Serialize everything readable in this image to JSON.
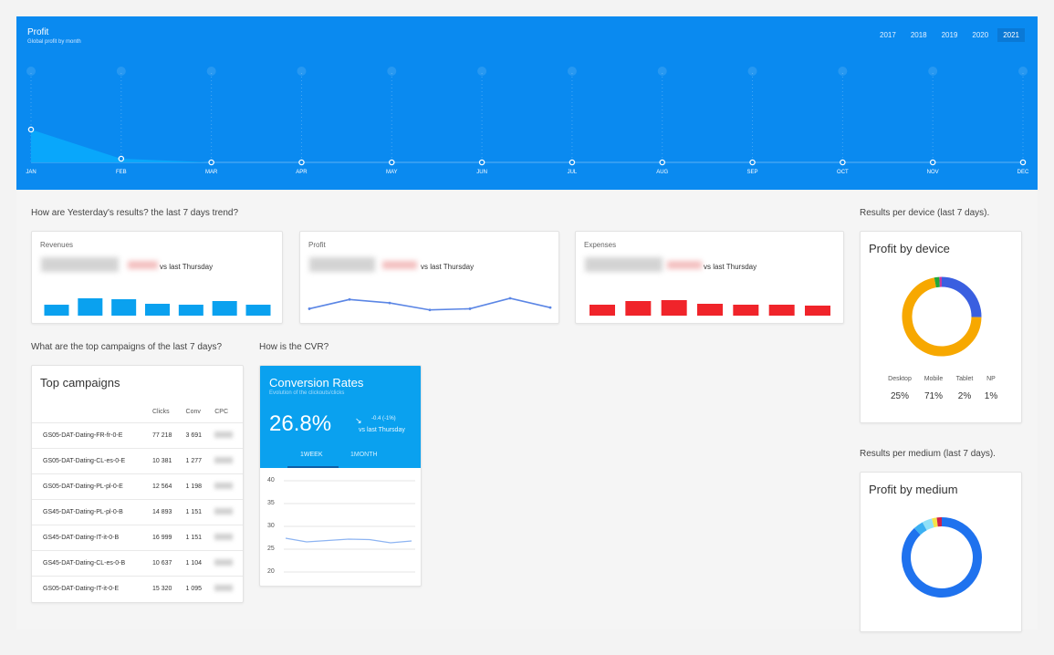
{
  "header": {
    "title": "Profit",
    "subtitle": "Global profit by month",
    "years": [
      "2017",
      "2018",
      "2019",
      "2020",
      "2021"
    ],
    "active_year": "2021",
    "months": [
      "JAN",
      "FEB",
      "MAR",
      "APR",
      "MAY",
      "JUN",
      "JUL",
      "AUG",
      "SEP",
      "OCT",
      "NOV",
      "DEC"
    ]
  },
  "sections": {
    "yesterday": "How are Yesterday's results? the last 7 days trend?",
    "device": "Results per device (last 7 days).",
    "campaigns": "What are the top campaigns of the last 7 days?",
    "cvr": "How is the CVR?",
    "medium": "Results per medium (last 7 days)."
  },
  "kpis": [
    {
      "label": "Revenues",
      "vs": "vs last Thursday",
      "color": "#0aa1ef"
    },
    {
      "label": "Profit",
      "vs": "vs last Thursday",
      "color": "#5b86e5"
    },
    {
      "label": "Expenses",
      "vs": "vs last Thursday",
      "color": "#f0242a"
    }
  ],
  "campaigns": {
    "title": "Top campaigns",
    "columns": [
      "",
      "Clicks",
      "Conv",
      "CPC"
    ],
    "rows": [
      {
        "name": "GS05-DAT-Dating-FR-fr-0-E",
        "clicks": "77 218",
        "conv": "3 691"
      },
      {
        "name": "GS05-DAT-Dating-CL-es-0-E",
        "clicks": "10 381",
        "conv": "1 277"
      },
      {
        "name": "GS05-DAT-Dating-PL-pl-0-E",
        "clicks": "12 564",
        "conv": "1 198"
      },
      {
        "name": "GS45-DAT-Dating-PL-pl-0-B",
        "clicks": "14 893",
        "conv": "1 151"
      },
      {
        "name": "GS45-DAT-Dating-IT-it-0-B",
        "clicks": "16 999",
        "conv": "1 151"
      },
      {
        "name": "GS45-DAT-Dating-CL-es-0-B",
        "clicks": "10 637",
        "conv": "1 104"
      },
      {
        "name": "GS05-DAT-Dating-IT-it-0-E",
        "clicks": "15 320",
        "conv": "1 095"
      }
    ]
  },
  "cvr": {
    "title": "Conversion Rates",
    "subtitle": "Evolution of the clickouts/clicks",
    "value": "26.8%",
    "delta": "-0.4 (-1%)",
    "vs": "vs last Thursday",
    "tabs": [
      "1WEEK",
      "1MONTH"
    ],
    "yticks": [
      "40",
      "35",
      "30",
      "25",
      "20"
    ]
  },
  "device": {
    "title": "Profit by device",
    "labels": [
      "Desktop",
      "Mobile",
      "Tablet",
      "NP"
    ],
    "values": [
      "25%",
      "71%",
      "2%",
      "1%"
    ],
    "colors": [
      "#3a5fe0",
      "#f7a800",
      "#1fa83a",
      "#c63aa0"
    ]
  },
  "medium": {
    "title": "Profit by medium",
    "colors": [
      "#1f72ee",
      "#3bb0f2",
      "#8fe0f7",
      "#f5e24a",
      "#d0204a"
    ]
  },
  "chart_data": [
    {
      "type": "area",
      "title": "Profit",
      "subtitle": "Global profit by month",
      "categories": [
        "JAN",
        "FEB",
        "MAR",
        "APR",
        "MAY",
        "JUN",
        "JUL",
        "AUG",
        "SEP",
        "OCT",
        "NOV",
        "DEC"
      ],
      "values": [
        36,
        4,
        0,
        0,
        0,
        0,
        0,
        0,
        0,
        0,
        0,
        0
      ],
      "ylim": [
        0,
        100
      ]
    },
    {
      "type": "bar",
      "title": "Revenues",
      "values": [
        12,
        19,
        18,
        13,
        12,
        16,
        12
      ]
    },
    {
      "type": "line",
      "title": "Profit",
      "values": [
        2,
        10,
        7,
        1,
        2,
        11,
        3
      ]
    },
    {
      "type": "bar",
      "title": "Expenses",
      "values": [
        12,
        16,
        17,
        13,
        12,
        12,
        11
      ]
    },
    {
      "type": "line",
      "title": "Conversion Rates",
      "values": [
        27.4,
        26.6,
        26.9,
        27.2,
        27.1,
        26.4,
        26.8
      ],
      "ylim": [
        18,
        42
      ]
    },
    {
      "type": "pie",
      "title": "Profit by device",
      "categories": [
        "Desktop",
        "Mobile",
        "Tablet",
        "NP"
      ],
      "values": [
        25,
        71,
        2,
        1
      ]
    },
    {
      "type": "pie",
      "title": "Profit by medium",
      "values": [
        88,
        4,
        4,
        2,
        2
      ]
    }
  ]
}
